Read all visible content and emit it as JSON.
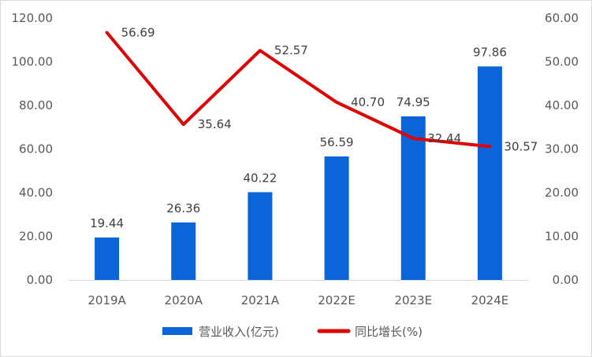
{
  "chart_data": {
    "type": "bar",
    "categories": [
      "2019A",
      "2020A",
      "2021A",
      "2022E",
      "2023E",
      "2024E"
    ],
    "series": [
      {
        "name": "营业收入(亿元)",
        "type": "bar",
        "axis": "left",
        "color": "#0A66D8",
        "values": [
          19.44,
          26.36,
          40.22,
          56.59,
          74.95,
          97.86
        ],
        "labels": [
          "19.44",
          "26.36",
          "40.22",
          "56.59",
          "74.95",
          "97.86"
        ]
      },
      {
        "name": "同比增长(%)",
        "type": "line",
        "axis": "right",
        "color": "#E00000",
        "values": [
          56.69,
          35.64,
          52.57,
          40.7,
          32.44,
          30.57
        ],
        "labels": [
          "56.69",
          "35.64",
          "52.57",
          "40.70",
          "32.44",
          "30.57"
        ]
      }
    ],
    "y_left": {
      "ylim": [
        0,
        120
      ],
      "ticks": [
        "0.00",
        "20.00",
        "40.00",
        "60.00",
        "80.00",
        "100.00",
        "120.00"
      ]
    },
    "y_right": {
      "ylim": [
        0,
        60
      ],
      "ticks": [
        "0.00",
        "10.00",
        "20.00",
        "30.00",
        "40.00",
        "50.00",
        "60.00"
      ]
    },
    "grid": false,
    "legend": "bottom-center"
  }
}
